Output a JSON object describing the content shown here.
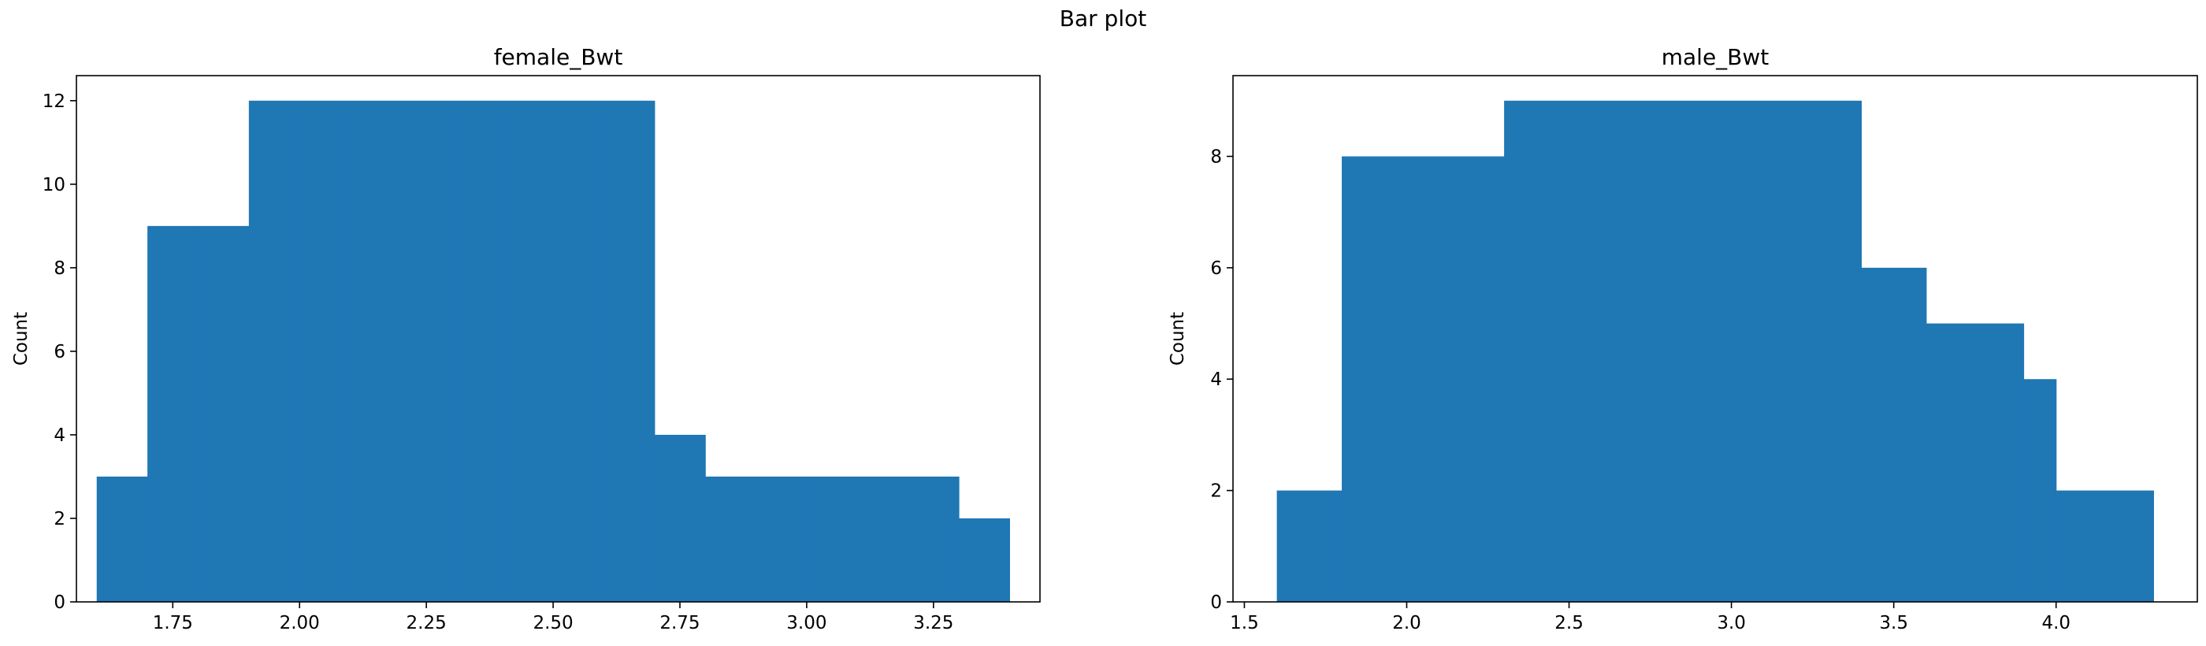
{
  "suptitle": "Bar plot",
  "chart_data": [
    {
      "type": "bar",
      "title": "female_Bwt",
      "xlabel": "",
      "ylabel": "Count",
      "xlim": [
        1.56,
        3.46
      ],
      "ylim": [
        0,
        12.6
      ],
      "bar_color": "#1f77b4",
      "bins": [
        {
          "x0": 1.6,
          "x1": 1.7,
          "value": 3
        },
        {
          "x0": 1.7,
          "x1": 1.8,
          "value": 9
        },
        {
          "x0": 1.8,
          "x1": 1.9,
          "value": 9
        },
        {
          "x0": 1.9,
          "x1": 2.0,
          "value": 12
        },
        {
          "x0": 2.0,
          "x1": 2.1,
          "value": 12
        },
        {
          "x0": 2.1,
          "x1": 2.2,
          "value": 12
        },
        {
          "x0": 2.2,
          "x1": 2.3,
          "value": 12
        },
        {
          "x0": 2.3,
          "x1": 2.4,
          "value": 12
        },
        {
          "x0": 2.4,
          "x1": 2.5,
          "value": 12
        },
        {
          "x0": 2.5,
          "x1": 2.6,
          "value": 12
        },
        {
          "x0": 2.6,
          "x1": 2.7,
          "value": 12
        },
        {
          "x0": 2.7,
          "x1": 2.8,
          "value": 4
        },
        {
          "x0": 2.8,
          "x1": 2.9,
          "value": 3
        },
        {
          "x0": 2.9,
          "x1": 3.0,
          "value": 3
        },
        {
          "x0": 3.0,
          "x1": 3.1,
          "value": 3
        },
        {
          "x0": 3.1,
          "x1": 3.2,
          "value": 3
        },
        {
          "x0": 3.2,
          "x1": 3.3,
          "value": 3
        },
        {
          "x0": 3.3,
          "x1": 3.4,
          "value": 2
        }
      ],
      "xticks": [
        1.75,
        2.0,
        2.25,
        2.5,
        2.75,
        3.0,
        3.25
      ],
      "xtick_labels": [
        "1.75",
        "2.00",
        "2.25",
        "2.50",
        "2.75",
        "3.00",
        "3.25"
      ],
      "yticks": [
        0,
        2,
        4,
        6,
        8,
        10,
        12
      ],
      "ytick_labels": [
        "0",
        "2",
        "4",
        "6",
        "8",
        "10",
        "12"
      ]
    },
    {
      "type": "bar",
      "title": "male_Bwt",
      "xlabel": "",
      "ylabel": "Count",
      "xlim": [
        1.465,
        4.435
      ],
      "ylim": [
        0,
        9.45
      ],
      "bar_color": "#1f77b4",
      "bins": [
        {
          "x0": 1.6,
          "x1": 1.8,
          "value": 2
        },
        {
          "x0": 1.8,
          "x1": 2.3,
          "value": 8
        },
        {
          "x0": 2.3,
          "x1": 3.4,
          "value": 9
        },
        {
          "x0": 3.4,
          "x1": 3.6,
          "value": 6
        },
        {
          "x0": 3.6,
          "x1": 3.9,
          "value": 5
        },
        {
          "x0": 3.9,
          "x1": 4.0,
          "value": 4
        },
        {
          "x0": 4.0,
          "x1": 4.3,
          "value": 2
        }
      ],
      "xticks": [
        1.5,
        2.0,
        2.5,
        3.0,
        3.5,
        4.0
      ],
      "xtick_labels": [
        "1.5",
        "2.0",
        "2.5",
        "3.0",
        "3.5",
        "4.0"
      ],
      "yticks": [
        0,
        2,
        4,
        6,
        8
      ],
      "ytick_labels": [
        "0",
        "2",
        "4",
        "6",
        "8"
      ]
    }
  ]
}
